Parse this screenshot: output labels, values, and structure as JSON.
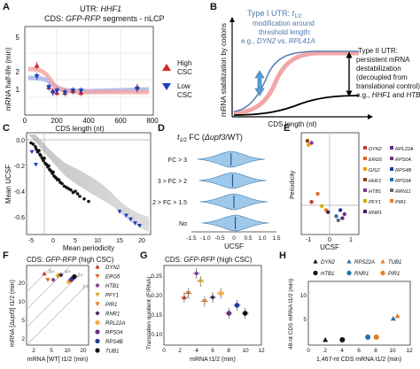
{
  "panel_letters": [
    "A",
    "B",
    "C",
    "D",
    "E",
    "F",
    "G",
    "H"
  ],
  "panel_a": {
    "title_line1": "UTR: ",
    "title_line1_gene": "HHF1",
    "title_line2": "CDS: ",
    "title_line2_gene": "GFP-RFP",
    "title_line2_rest": " segments - nLCP",
    "ylabel": "mRNA half-life (min)",
    "xlabel": "CDS length (nt)",
    "ytick_labels": [
      "1",
      "2",
      "5"
    ],
    "xtick_labels": [
      "0",
      "200",
      "400",
      "600",
      "800"
    ],
    "legend": [
      {
        "label_line1": "High",
        "label_line2": "CSC",
        "color": "#d62728",
        "marker": "triangle-up"
      },
      {
        "label_line1": "Low",
        "label_line2": "CSC",
        "color": "#1f3fbf",
        "marker": "triangle-down"
      }
    ]
  },
  "panel_b": {
    "type1_line1": "Type I UTR: ",
    "type1_t": "t",
    "type1_sub": "1/2",
    "type1_line2": "modification around",
    "type1_line3": "threshold length:",
    "type1_line4_pre": "e.g., ",
    "type1_gene1": "DYN2",
    "type1_vs": " vs. ",
    "type1_gene2": "RPL41A",
    "type2_line1": "Type II UTR:",
    "type2_line2": "persistent mRNA",
    "type2_line3": "destabilization",
    "type2_line4": "(decoupled from",
    "type2_line5": "translational control):",
    "type2_line6_pre": "e.g., ",
    "type2_gene1": "HHF1",
    "type2_and": " and ",
    "type2_gene2": "HTB1",
    "ylabel": "mRNA stabilization by codons",
    "xlabel": "CDS length (nt)"
  },
  "panel_c": {
    "ylabel": "Mean UCSF",
    "xlabel": "Mean periodicity",
    "ytick_labels": [
      "0.0",
      "-0.2",
      "-0.4",
      "-0.6"
    ],
    "xtick_labels": [
      "-5",
      "0",
      "5",
      "10",
      "15",
      "20"
    ]
  },
  "panel_d": {
    "title_t": "t",
    "title_sub": "1/2",
    "title_rest": " FC (",
    "title_gene": "Δupf3",
    "title_end": "/WT)",
    "categories": [
      "FC > 3",
      "3 > FC > 2",
      "2 > FC > 1.5",
      "No"
    ],
    "xlabel": "UCSF",
    "xtick_labels": [
      "-1.5",
      "-1.0",
      "-0.5",
      "0",
      "0.5",
      "1.0",
      "1.5"
    ]
  },
  "panel_e": {
    "ylabel": "Periodicity",
    "xlabel": "UCSF",
    "xtick_labels": [
      "-1",
      "0",
      "1"
    ],
    "legend": [
      {
        "label": "DYN2",
        "color": "#c0392b"
      },
      {
        "label": "RPL22A",
        "color": "#5a2d82"
      },
      {
        "label": "ERG5",
        "color": "#e06a1f"
      },
      {
        "label": "RPS0A",
        "color": "#6c3483"
      },
      {
        "label": "GIS2",
        "color": "#f0a500"
      },
      {
        "label": "RPS4B",
        "color": "#1f3a93"
      },
      {
        "label": "HHF1",
        "color": "#8b4513"
      },
      {
        "label": "RPS9A",
        "color": "#2471a3"
      },
      {
        "label": "HTB1",
        "color": "#7d3c98"
      },
      {
        "label": "RRN11",
        "color": "#5d6d7e"
      },
      {
        "label": "PFY1",
        "color": "#d4ac0d"
      },
      {
        "label": "PIR1",
        "color": "#e67e22"
      },
      {
        "label": "RNR1",
        "color": "#4a235a"
      }
    ]
  },
  "panel_f": {
    "title": "CDS: ",
    "title_gene": "GFP-RFP",
    "title_rest": " (high CSC)",
    "ylabel_pre": "mRNA [Δ",
    "ylabel_gene": "upf3",
    "ylabel_post": "] t1/2 (min)",
    "xlabel": "mRNA [WT] t1/2 (min)",
    "fold_labels": [
      "8×",
      "4×",
      "2×",
      "1×"
    ],
    "xtick_labels": [
      "2",
      "5",
      "10",
      "20"
    ],
    "ytick_labels": [
      "2",
      "5",
      "10",
      "20"
    ],
    "legend": [
      {
        "label": "DYN2",
        "color": "#c0392b",
        "marker": "triangle-up"
      },
      {
        "label": "ERG5",
        "color": "#e06a1f",
        "marker": "triangle-down"
      },
      {
        "label": "HTB1",
        "color": "#7d3c98",
        "marker": "diamond"
      },
      {
        "label": "PFY1",
        "color": "#d4ac0d",
        "marker": "triangle-down"
      },
      {
        "label": "PIR1",
        "color": "#e67e22",
        "marker": "triangle-down"
      },
      {
        "label": "RNR1",
        "color": "#4a235a",
        "marker": "diamond"
      },
      {
        "label": "RPL22A",
        "color": "#f5b041",
        "marker": "circle"
      },
      {
        "label": "RPS0A",
        "color": "#6c3483",
        "marker": "circle"
      },
      {
        "label": "RPS4B",
        "color": "#1f3a93",
        "marker": "circle"
      },
      {
        "label": "TUB1",
        "color": "#111111",
        "marker": "circle"
      }
    ]
  },
  "panel_g": {
    "title": "CDS: ",
    "title_gene": "GFP-RFP",
    "title_rest": " (high CSC)",
    "ylabel": "Translation quotient (F/RNA)",
    "xlabel": "mRNA t1/2 (min)",
    "ytick_labels": [
      "0.10",
      "0.15",
      "0.20",
      "0.25"
    ],
    "xtick_labels": [
      "0",
      "2",
      "4",
      "6",
      "8",
      "10",
      "12"
    ]
  },
  "panel_h": {
    "ylabel": "48-nt CDS mRNA t1/2 (min)",
    "xlabel": "1,467-nt CDS mRNA t1/2 (min)",
    "ytick_labels": [
      "5",
      "10"
    ],
    "xtick_labels": [
      "0",
      "2",
      "4",
      "6",
      "8",
      "10",
      "12"
    ],
    "legend": [
      {
        "label": "DYN2",
        "color": "#111111",
        "marker": "triangle-up"
      },
      {
        "label": "RPS22A",
        "color": "#2471a3",
        "marker": "triangle-up"
      },
      {
        "label": "TUB1",
        "color": "#e67e22",
        "marker": "triangle-up"
      },
      {
        "label": "HTB1",
        "color": "#111111",
        "marker": "circle"
      },
      {
        "label": "RNR1",
        "color": "#2471a3",
        "marker": "circle"
      },
      {
        "label": "PIR1",
        "color": "#e67e22",
        "marker": "circle"
      }
    ]
  },
  "chart_data": [
    {
      "panel": "A",
      "type": "scatter",
      "xlabel": "CDS length (nt)",
      "ylabel": "mRNA half-life (min)",
      "xlim": [
        0,
        800
      ],
      "ylim": [
        0.7,
        5
      ],
      "yscale": "log",
      "series": [
        {
          "name": "High CSC",
          "x": [
            75,
            150,
            175,
            200,
            250,
            300,
            350,
            700
          ],
          "y": [
            2.1,
            1.3,
            1.2,
            1.15,
            1.15,
            1.2,
            1.15,
            1.3
          ]
        },
        {
          "name": "Low CSC",
          "x": [
            75,
            150,
            175,
            200,
            250,
            300,
            350,
            700
          ],
          "y": [
            1.65,
            1.3,
            1.15,
            1.2,
            1.15,
            1.2,
            1.2,
            1.25
          ]
        }
      ]
    },
    {
      "panel": "C",
      "type": "scatter",
      "xlabel": "Mean periodicity",
      "ylabel": "Mean UCSF",
      "xlim": [
        -7,
        21
      ],
      "ylim": [
        -0.7,
        0.1
      ],
      "series": [
        {
          "name": "genes",
          "x": [
            -6,
            -5.5,
            -5,
            -4.8,
            -4.5,
            -4.2,
            -4,
            -3.8,
            -3.5,
            -3.2,
            -3,
            -2.8,
            -2.5,
            -2.2,
            -2,
            -1.8,
            -1.5,
            -1.2,
            -1,
            -0.8,
            -0.5,
            -0.2,
            0,
            0.3,
            0.6,
            1,
            1.5,
            2,
            2.5,
            3,
            3.5,
            4,
            4.5,
            5,
            6,
            7
          ],
          "y": [
            0.02,
            0.01,
            -0.01,
            -0.03,
            -0.05,
            -0.04,
            -0.07,
            -0.08,
            -0.1,
            -0.12,
            -0.1,
            -0.14,
            -0.15,
            -0.17,
            -0.16,
            -0.19,
            -0.2,
            -0.22,
            -0.21,
            -0.24,
            -0.25,
            -0.26,
            -0.27,
            -0.27,
            -0.29,
            -0.3,
            -0.32,
            -0.33,
            -0.34,
            -0.35,
            -0.37,
            -0.36,
            -0.38,
            -0.4,
            -0.42,
            -0.44
          ]
        },
        {
          "name": "outliers",
          "x": [
            -5.8,
            -4.9,
            14,
            15.5,
            16.5,
            17.5,
            18.5
          ],
          "y": [
            -0.05,
            -0.15,
            -0.52,
            -0.55,
            -0.58,
            -0.61,
            -0.63
          ]
        }
      ]
    },
    {
      "panel": "D",
      "type": "violin",
      "xlabel": "UCSF",
      "xlim": [
        -1.5,
        1.5
      ],
      "categories": [
        "FC > 3",
        "3 > FC > 2",
        "2 > FC > 1.5",
        "No"
      ],
      "medians": [
        -0.1,
        -0.05,
        0.0,
        0.05
      ]
    },
    {
      "panel": "E",
      "type": "scatter",
      "xlabel": "UCSF",
      "ylabel": "Periodicity",
      "xlim": [
        -1.4,
        1.4
      ],
      "ylim": [
        -5,
        20
      ],
      "series": [
        {
          "name": "DYN2",
          "x": [
            -0.9
          ],
          "y": [
            3
          ]
        },
        {
          "name": "RPL22A",
          "x": [
            0.6
          ],
          "y": [
            -1
          ]
        },
        {
          "name": "ERG5",
          "x": [
            -0.6
          ],
          "y": [
            5
          ]
        },
        {
          "name": "RPS0A",
          "x": [
            0.7
          ],
          "y": [
            0
          ]
        },
        {
          "name": "GIS2",
          "x": [
            -1.05
          ],
          "y": [
            17
          ]
        },
        {
          "name": "RPS4B",
          "x": [
            0.5
          ],
          "y": [
            1
          ]
        },
        {
          "name": "HHF1",
          "x": [
            -1.1
          ],
          "y": [
            18
          ]
        },
        {
          "name": "RPS9A",
          "x": [
            0.3
          ],
          "y": [
            -0.5
          ]
        },
        {
          "name": "HTB1",
          "x": [
            -0.9
          ],
          "y": [
            17.5
          ]
        },
        {
          "name": "RRN11",
          "x": [
            0.4
          ],
          "y": [
            -1.5
          ]
        },
        {
          "name": "PFY1",
          "x": [
            -0.4
          ],
          "y": [
            2
          ]
        },
        {
          "name": "PIR1",
          "x": [
            -0.2
          ],
          "y": [
            1
          ]
        },
        {
          "name": "RNR1",
          "x": [
            -0.1
          ],
          "y": [
            0.5
          ]
        }
      ]
    },
    {
      "panel": "F",
      "type": "scatter",
      "xlabel": "mRNA [WT] t1/2 (min)",
      "ylabel": "mRNA [Δupf3] t1/2 (min)",
      "xscale": "log",
      "yscale": "log",
      "xlim": [
        1,
        25
      ],
      "ylim": [
        1,
        25
      ],
      "series": [
        {
          "name": "DYN2",
          "x": [
            2.5
          ],
          "y": [
            18
          ]
        },
        {
          "name": "ERG5",
          "x": [
            3
          ],
          "y": [
            14
          ]
        },
        {
          "name": "HTB1",
          "x": [
            4
          ],
          "y": [
            14
          ]
        },
        {
          "name": "PFY1",
          "x": [
            5
          ],
          "y": [
            16
          ]
        },
        {
          "name": "PIR1",
          "x": [
            5.5
          ],
          "y": [
            17
          ]
        },
        {
          "name": "RNR1",
          "x": [
            6
          ],
          "y": [
            17
          ]
        },
        {
          "name": "RPL22A",
          "x": [
            9
          ],
          "y": [
            13
          ]
        },
        {
          "name": "RPS0A",
          "x": [
            10
          ],
          "y": [
            14
          ]
        },
        {
          "name": "RPS4B",
          "x": [
            11
          ],
          "y": [
            15
          ]
        },
        {
          "name": "TUB1",
          "x": [
            12
          ],
          "y": [
            16
          ]
        }
      ]
    },
    {
      "panel": "G",
      "type": "scatter",
      "xlabel": "mRNA t1/2 (min)",
      "ylabel": "Translation quotient (F/RNA)",
      "xlim": [
        0,
        12
      ],
      "ylim": [
        0.08,
        0.28
      ],
      "series": [
        {
          "name": "genes",
          "x": [
            2.5,
            3,
            4,
            4.5,
            5,
            6,
            7,
            8,
            9,
            10
          ],
          "y": [
            0.2,
            0.21,
            0.26,
            0.24,
            0.19,
            0.2,
            0.21,
            0.16,
            0.18,
            0.16
          ]
        }
      ]
    },
    {
      "panel": "H",
      "type": "scatter",
      "xlabel": "1,467-nt CDS mRNA t1/2 (min)",
      "ylabel": "48-nt CDS mRNA t1/2 (min)",
      "xlim": [
        0,
        12
      ],
      "ylim": [
        0,
        12
      ],
      "series": [
        {
          "name": "DYN2",
          "x": [
            2
          ],
          "y": [
            1
          ]
        },
        {
          "name": "RPS22A",
          "x": [
            10
          ],
          "y": [
            5
          ]
        },
        {
          "name": "TUB1",
          "x": [
            10.5
          ],
          "y": [
            5.5
          ]
        },
        {
          "name": "HTB1",
          "x": [
            4
          ],
          "y": [
            1
          ]
        },
        {
          "name": "RNR1",
          "x": [
            7
          ],
          "y": [
            1.5
          ]
        },
        {
          "name": "PIR1",
          "x": [
            8
          ],
          "y": [
            1.5
          ]
        }
      ]
    }
  ]
}
